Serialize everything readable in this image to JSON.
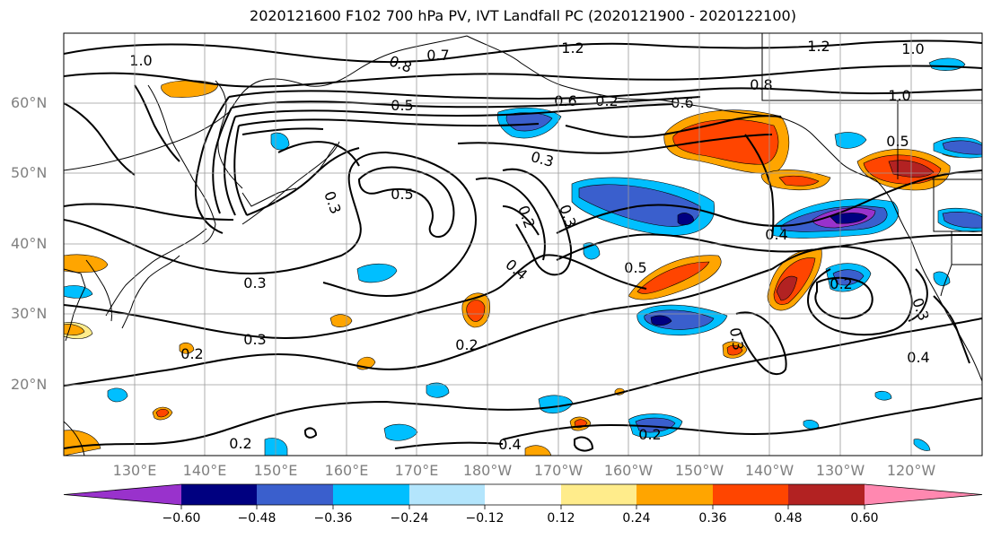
{
  "title": "2020121600 F102 700 hPa PV, IVT Landfall PC (2020121900 - 2020122100)",
  "lat_labels": [
    "60°N",
    "50°N",
    "40°N",
    "30°N",
    "20°N"
  ],
  "lon_labels": [
    "130°E",
    "140°E",
    "150°E",
    "160°E",
    "170°E",
    "180°W",
    "170°W",
    "160°W",
    "150°W",
    "140°W",
    "130°W",
    "120°W"
  ],
  "contour_labels": [
    "1.0",
    "0.7",
    "1.2",
    "1.2",
    "1.0",
    "0.8",
    "0.5",
    "0.6",
    "0.2",
    "0.6",
    "0.8",
    "1.0",
    "0.5",
    "0.3",
    "0.5",
    "0.3",
    "0.2",
    "0.3",
    "0.4",
    "0.5",
    "0.4",
    "0.3",
    "0.2",
    "0.3",
    "0.2",
    "0.3",
    "0.4",
    "0.2",
    "0.2",
    "0.4",
    "0.2",
    "0.3"
  ],
  "colorbar": {
    "ticks": [
      "−0.60",
      "−0.48",
      "−0.36",
      "−0.24",
      "−0.12",
      "0.12",
      "0.24",
      "0.36",
      "0.48",
      "0.60"
    ],
    "colors": [
      "#9932cc",
      "#000080",
      "#3a5fcd",
      "#00bfff",
      "#b3e5fc",
      "#ffffff",
      "#ffec8b",
      "#ffa500",
      "#ff4500",
      "#b22222",
      "#ff88b0"
    ]
  },
  "colors": {
    "lat_lon_label": "#808080",
    "contour": "#000000",
    "grid": "#9a9a9a"
  }
}
